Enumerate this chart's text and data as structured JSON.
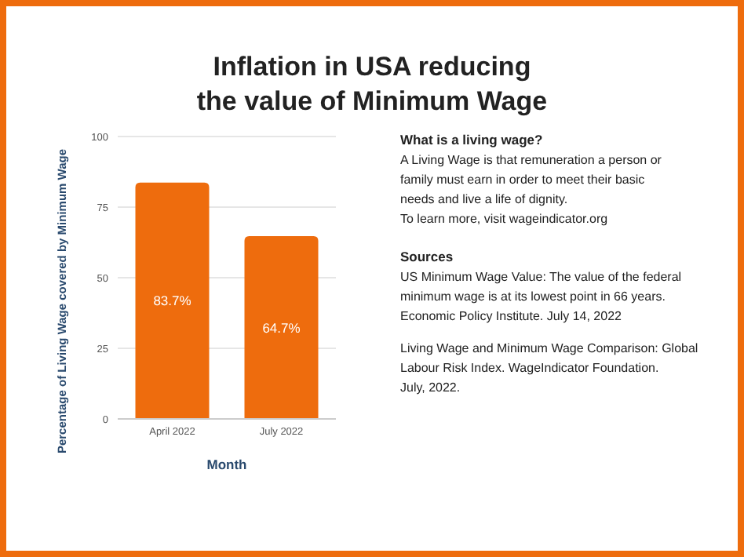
{
  "chart_data": {
    "type": "bar",
    "title": "Inflation in USA reducing the value of Minimum Wage",
    "categories": [
      "April 2022",
      "July 2022"
    ],
    "values": [
      83.7,
      64.7
    ],
    "value_labels": [
      "83.7%",
      "64.7%"
    ],
    "color": "#ee6c0d",
    "xlabel": "Month",
    "ylabel": "Percentage of Living Wage covered by Minimum Wage",
    "ylim": [
      0,
      100
    ],
    "yticks": [
      0,
      25,
      50,
      75,
      100
    ],
    "grid": "y",
    "annotations": [
      "What is a living wage?",
      "A Living Wage is that remuneration a person or family must earn in order to meet their basic needs and live a life of dignity.",
      "To learn more, visit wageindicator.org",
      "Sources",
      "US Minimum Wage Value: The value of the federal minimum wage is at its lowest point in 66 years. Economic Policy Institute. July 14, 2022",
      "Living Wage and Minimum Wage Comparison: Global Labour Risk Index. WageIndicator Foundation. July, 2022."
    ]
  }
}
